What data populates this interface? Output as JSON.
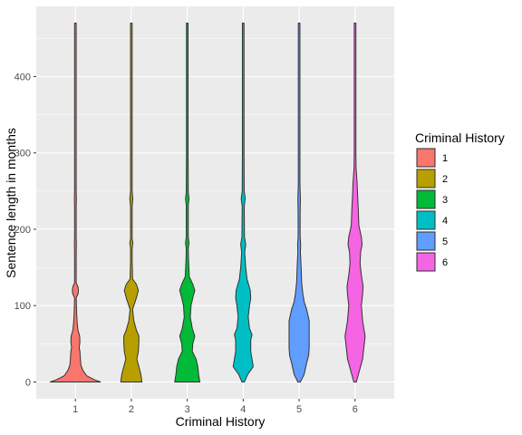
{
  "chart_data": {
    "type": "violin",
    "xlabel": "Criminal History",
    "ylabel": "Sentence length in months",
    "categories": [
      "1",
      "2",
      "3",
      "4",
      "5",
      "6"
    ],
    "y_ticks": [
      0,
      100,
      200,
      300,
      400
    ],
    "ylim": [
      -22,
      492
    ],
    "grid": true,
    "legend": {
      "title": "Criminal History",
      "position": "right",
      "entries": [
        "1",
        "2",
        "3",
        "4",
        "5",
        "6"
      ]
    },
    "colors": [
      "#F8766D",
      "#B79F00",
      "#00BA38",
      "#00BFC4",
      "#619CFF",
      "#F564E3"
    ],
    "panel_background": "#EBEBEB",
    "series": [
      {
        "category": "1",
        "max": 470,
        "density": [
          [
            0,
            1.0
          ],
          [
            3,
            0.75
          ],
          [
            8,
            0.45
          ],
          [
            15,
            0.3
          ],
          [
            22,
            0.22
          ],
          [
            30,
            0.2
          ],
          [
            40,
            0.18
          ],
          [
            45,
            0.15
          ],
          [
            52,
            0.18
          ],
          [
            60,
            0.17
          ],
          [
            68,
            0.1
          ],
          [
            78,
            0.07
          ],
          [
            90,
            0.05
          ],
          [
            110,
            0.03
          ],
          [
            116,
            0.11
          ],
          [
            120,
            0.12
          ],
          [
            124,
            0.11
          ],
          [
            130,
            0.03
          ],
          [
            140,
            0.02
          ],
          [
            170,
            0.02
          ],
          [
            180,
            0.04
          ],
          [
            190,
            0.02
          ],
          [
            230,
            0.02
          ],
          [
            240,
            0.04
          ],
          [
            250,
            0.02
          ],
          [
            280,
            0.015
          ],
          [
            350,
            0.015
          ],
          [
            470,
            0.0
          ]
        ]
      },
      {
        "category": "2",
        "max": 470,
        "density": [
          [
            0,
            0.42
          ],
          [
            10,
            0.38
          ],
          [
            20,
            0.3
          ],
          [
            30,
            0.22
          ],
          [
            40,
            0.28
          ],
          [
            52,
            0.3
          ],
          [
            60,
            0.3
          ],
          [
            68,
            0.2
          ],
          [
            80,
            0.1
          ],
          [
            95,
            0.05
          ],
          [
            110,
            0.2
          ],
          [
            120,
            0.28
          ],
          [
            128,
            0.2
          ],
          [
            135,
            0.05
          ],
          [
            160,
            0.03
          ],
          [
            175,
            0.03
          ],
          [
            182,
            0.06
          ],
          [
            188,
            0.03
          ],
          [
            230,
            0.03
          ],
          [
            240,
            0.06
          ],
          [
            250,
            0.03
          ],
          [
            300,
            0.02
          ],
          [
            400,
            0.02
          ],
          [
            470,
            0.0
          ]
        ]
      },
      {
        "category": "3",
        "max": 470,
        "density": [
          [
            0,
            0.5
          ],
          [
            10,
            0.45
          ],
          [
            20,
            0.42
          ],
          [
            30,
            0.35
          ],
          [
            40,
            0.2
          ],
          [
            50,
            0.22
          ],
          [
            60,
            0.3
          ],
          [
            70,
            0.2
          ],
          [
            85,
            0.12
          ],
          [
            100,
            0.15
          ],
          [
            110,
            0.22
          ],
          [
            120,
            0.3
          ],
          [
            128,
            0.22
          ],
          [
            138,
            0.08
          ],
          [
            160,
            0.05
          ],
          [
            175,
            0.04
          ],
          [
            182,
            0.07
          ],
          [
            190,
            0.04
          ],
          [
            232,
            0.04
          ],
          [
            240,
            0.07
          ],
          [
            248,
            0.04
          ],
          [
            300,
            0.02
          ],
          [
            400,
            0.02
          ],
          [
            470,
            0.0
          ]
        ]
      },
      {
        "category": "4",
        "max": 470,
        "density": [
          [
            0,
            0.05
          ],
          [
            10,
            0.18
          ],
          [
            20,
            0.4
          ],
          [
            30,
            0.35
          ],
          [
            40,
            0.3
          ],
          [
            55,
            0.3
          ],
          [
            62,
            0.35
          ],
          [
            70,
            0.25
          ],
          [
            85,
            0.2
          ],
          [
            100,
            0.25
          ],
          [
            110,
            0.3
          ],
          [
            120,
            0.28
          ],
          [
            135,
            0.15
          ],
          [
            150,
            0.1
          ],
          [
            170,
            0.06
          ],
          [
            180,
            0.1
          ],
          [
            190,
            0.05
          ],
          [
            230,
            0.04
          ],
          [
            240,
            0.08
          ],
          [
            250,
            0.04
          ],
          [
            300,
            0.02
          ],
          [
            400,
            0.02
          ],
          [
            470,
            0.0
          ]
        ]
      },
      {
        "category": "5",
        "max": 470,
        "density": [
          [
            0,
            0.05
          ],
          [
            10,
            0.2
          ],
          [
            25,
            0.3
          ],
          [
            35,
            0.38
          ],
          [
            45,
            0.4
          ],
          [
            60,
            0.4
          ],
          [
            80,
            0.4
          ],
          [
            95,
            0.3
          ],
          [
            105,
            0.2
          ],
          [
            115,
            0.15
          ],
          [
            130,
            0.1
          ],
          [
            150,
            0.08
          ],
          [
            170,
            0.05
          ],
          [
            180,
            0.06
          ],
          [
            190,
            0.04
          ],
          [
            220,
            0.04
          ],
          [
            240,
            0.05
          ],
          [
            260,
            0.03
          ],
          [
            300,
            0.02
          ],
          [
            400,
            0.02
          ],
          [
            470,
            0.0
          ]
        ]
      },
      {
        "category": "6",
        "max": 470,
        "density": [
          [
            0,
            0.05
          ],
          [
            12,
            0.15
          ],
          [
            30,
            0.3
          ],
          [
            45,
            0.35
          ],
          [
            60,
            0.4
          ],
          [
            80,
            0.3
          ],
          [
            100,
            0.25
          ],
          [
            115,
            0.3
          ],
          [
            125,
            0.32
          ],
          [
            140,
            0.25
          ],
          [
            155,
            0.2
          ],
          [
            170,
            0.22
          ],
          [
            180,
            0.28
          ],
          [
            190,
            0.25
          ],
          [
            205,
            0.15
          ],
          [
            225,
            0.13
          ],
          [
            245,
            0.1
          ],
          [
            262,
            0.08
          ],
          [
            280,
            0.04
          ],
          [
            300,
            0.03
          ],
          [
            350,
            0.02
          ],
          [
            400,
            0.015
          ],
          [
            470,
            0.0
          ]
        ]
      }
    ]
  }
}
